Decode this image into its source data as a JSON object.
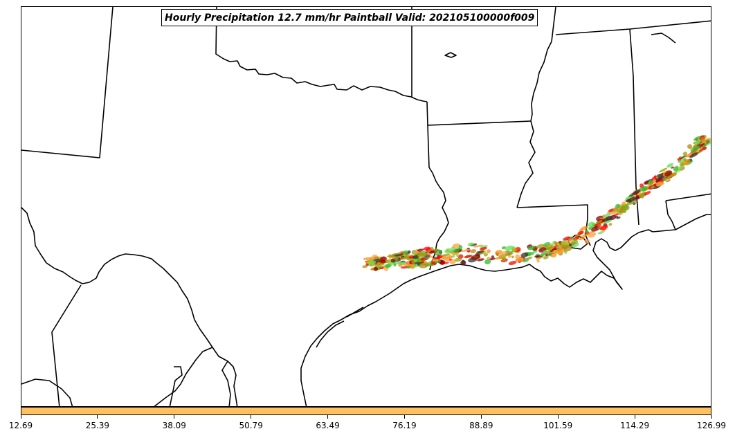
{
  "title": "Hourly Precipitation 12.7 mm/hr Paintball Valid: 202105100000f009",
  "colorbar": {
    "color": "#ffc060",
    "ticks": [
      "12.69",
      "25.39",
      "38.09",
      "50.79",
      "63.49",
      "76.19",
      "88.89",
      "101.59",
      "114.29",
      "126.99"
    ]
  },
  "paintball_colors": [
    "#ff0000",
    "#ff8c00",
    "#ffa040",
    "#2db82d",
    "#66dd55",
    "#8b0000",
    "#9aa010",
    "#333333",
    "#b8860b"
  ],
  "map": {
    "region": "Texas / Louisiana / Mississippi Gulf Coast",
    "features": [
      "state-borders",
      "coastline",
      "paintball-precipitation"
    ]
  }
}
